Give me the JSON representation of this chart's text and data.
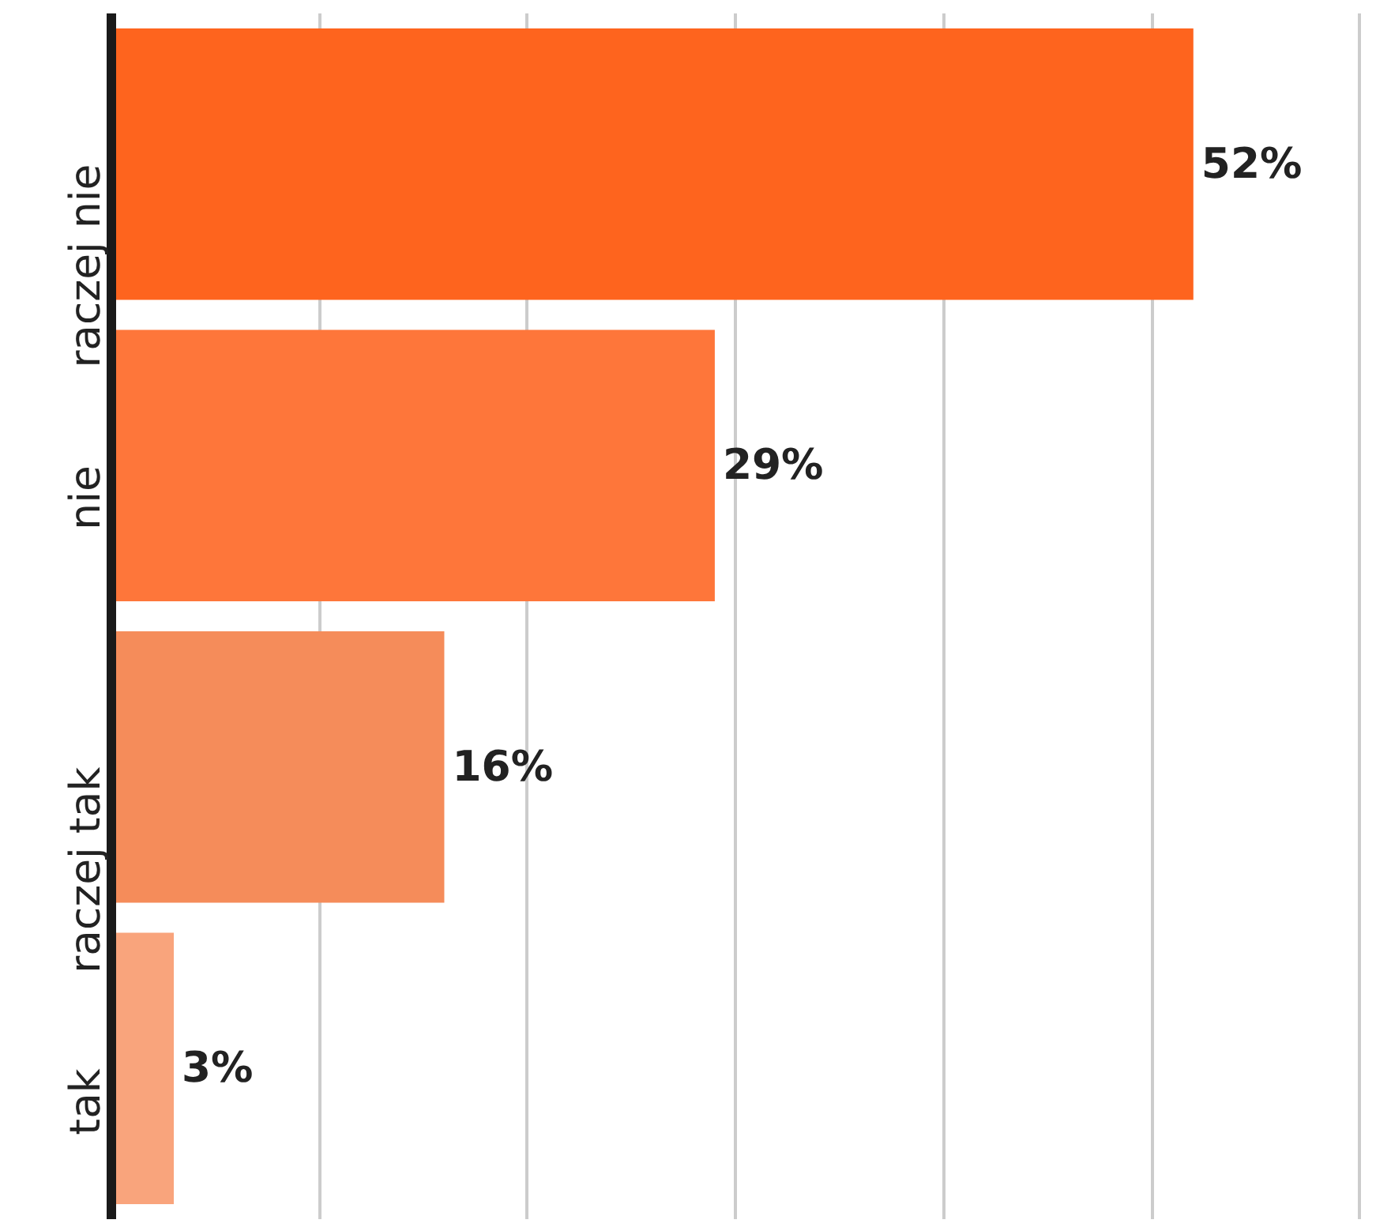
{
  "chart_data": {
    "type": "bar",
    "orientation": "horizontal",
    "categories": [
      "raczej nie",
      "nie",
      "raczej tak",
      "tak"
    ],
    "values": [
      52,
      29,
      16,
      3
    ],
    "colors": [
      "#fe641e",
      "#fe763a",
      "#f58c5a",
      "#f9a47c"
    ],
    "value_labels": [
      "52%",
      "29%",
      "16%",
      "3%"
    ],
    "xticks": [
      {
        "value": 10,
        "label": null
      },
      {
        "value": 20,
        "label": null
      },
      {
        "value": 30,
        "label": null
      },
      {
        "value": 40,
        "label": null
      },
      {
        "value": 50,
        "label": null
      },
      {
        "value": 60,
        "label": null
      }
    ],
    "grid": "x",
    "tick_labels": "y"
  }
}
